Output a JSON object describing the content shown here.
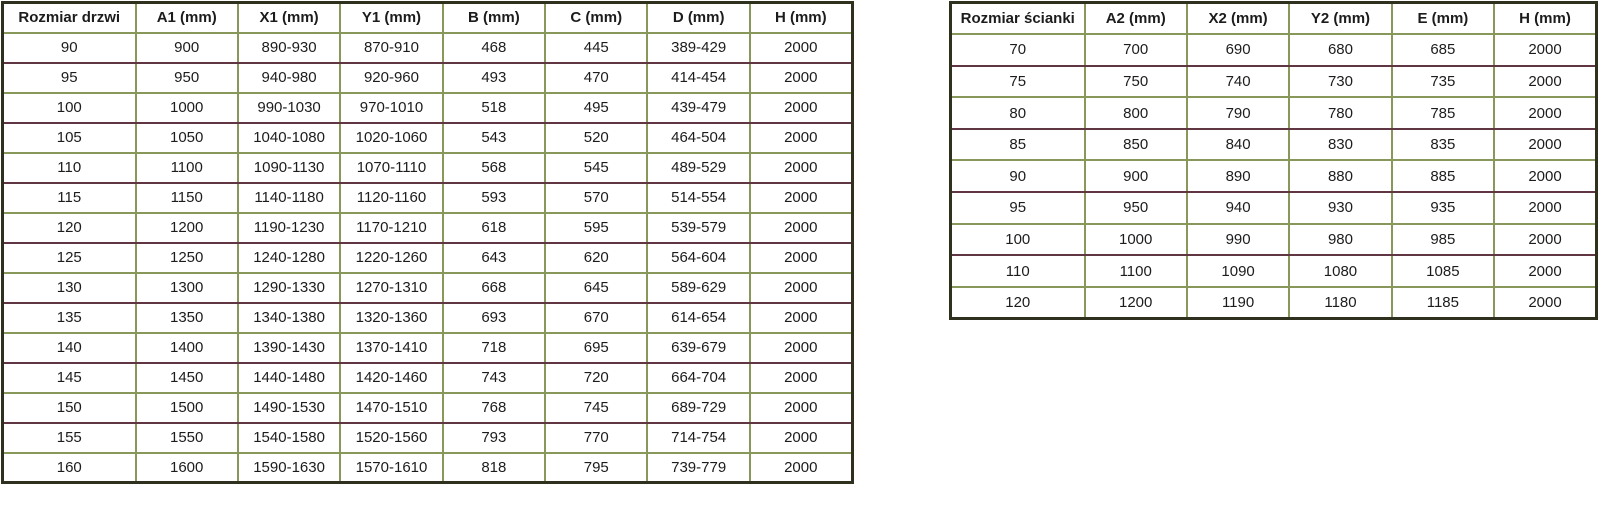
{
  "colors": {
    "grid_green": "#87985a",
    "grid_maroon": "#5f3642",
    "outer_border": "#30301f",
    "text": "#1c1c1c",
    "background": "#ffffff"
  },
  "tables": {
    "doors": {
      "name": "door-sizes-table",
      "headers": [
        "Rozmiar drzwi",
        "A1 (mm)",
        "X1 (mm)",
        "Y1 (mm)",
        "B (mm)",
        "C (mm)",
        "D (mm)",
        "H (mm)"
      ],
      "rows": [
        [
          "90",
          "900",
          "890-930",
          "870-910",
          "468",
          "445",
          "389-429",
          "2000"
        ],
        [
          "95",
          "950",
          "940-980",
          "920-960",
          "493",
          "470",
          "414-454",
          "2000"
        ],
        [
          "100",
          "1000",
          "990-1030",
          "970-1010",
          "518",
          "495",
          "439-479",
          "2000"
        ],
        [
          "105",
          "1050",
          "1040-1080",
          "1020-1060",
          "543",
          "520",
          "464-504",
          "2000"
        ],
        [
          "110",
          "1100",
          "1090-1130",
          "1070-1110",
          "568",
          "545",
          "489-529",
          "2000"
        ],
        [
          "115",
          "1150",
          "1140-1180",
          "1120-1160",
          "593",
          "570",
          "514-554",
          "2000"
        ],
        [
          "120",
          "1200",
          "1190-1230",
          "1170-1210",
          "618",
          "595",
          "539-579",
          "2000"
        ],
        [
          "125",
          "1250",
          "1240-1280",
          "1220-1260",
          "643",
          "620",
          "564-604",
          "2000"
        ],
        [
          "130",
          "1300",
          "1290-1330",
          "1270-1310",
          "668",
          "645",
          "589-629",
          "2000"
        ],
        [
          "135",
          "1350",
          "1340-1380",
          "1320-1360",
          "693",
          "670",
          "614-654",
          "2000"
        ],
        [
          "140",
          "1400",
          "1390-1430",
          "1370-1410",
          "718",
          "695",
          "639-679",
          "2000"
        ],
        [
          "145",
          "1450",
          "1440-1480",
          "1420-1460",
          "743",
          "720",
          "664-704",
          "2000"
        ],
        [
          "150",
          "1500",
          "1490-1530",
          "1470-1510",
          "768",
          "745",
          "689-729",
          "2000"
        ],
        [
          "155",
          "1550",
          "1540-1580",
          "1520-1560",
          "793",
          "770",
          "714-754",
          "2000"
        ],
        [
          "160",
          "1600",
          "1590-1630",
          "1570-1610",
          "818",
          "795",
          "739-779",
          "2000"
        ]
      ]
    },
    "walls": {
      "name": "wall-sizes-table",
      "headers": [
        "Rozmiar ścianki",
        "A2 (mm)",
        "X2 (mm)",
        "Y2 (mm)",
        "E (mm)",
        "H (mm)"
      ],
      "rows": [
        [
          "70",
          "700",
          "690",
          "680",
          "685",
          "2000"
        ],
        [
          "75",
          "750",
          "740",
          "730",
          "735",
          "2000"
        ],
        [
          "80",
          "800",
          "790",
          "780",
          "785",
          "2000"
        ],
        [
          "85",
          "850",
          "840",
          "830",
          "835",
          "2000"
        ],
        [
          "90",
          "900",
          "890",
          "880",
          "885",
          "2000"
        ],
        [
          "95",
          "950",
          "940",
          "930",
          "935",
          "2000"
        ],
        [
          "100",
          "1000",
          "990",
          "980",
          "985",
          "2000"
        ],
        [
          "110",
          "1100",
          "1090",
          "1080",
          "1085",
          "2000"
        ],
        [
          "120",
          "1200",
          "1190",
          "1180",
          "1185",
          "2000"
        ]
      ]
    }
  }
}
